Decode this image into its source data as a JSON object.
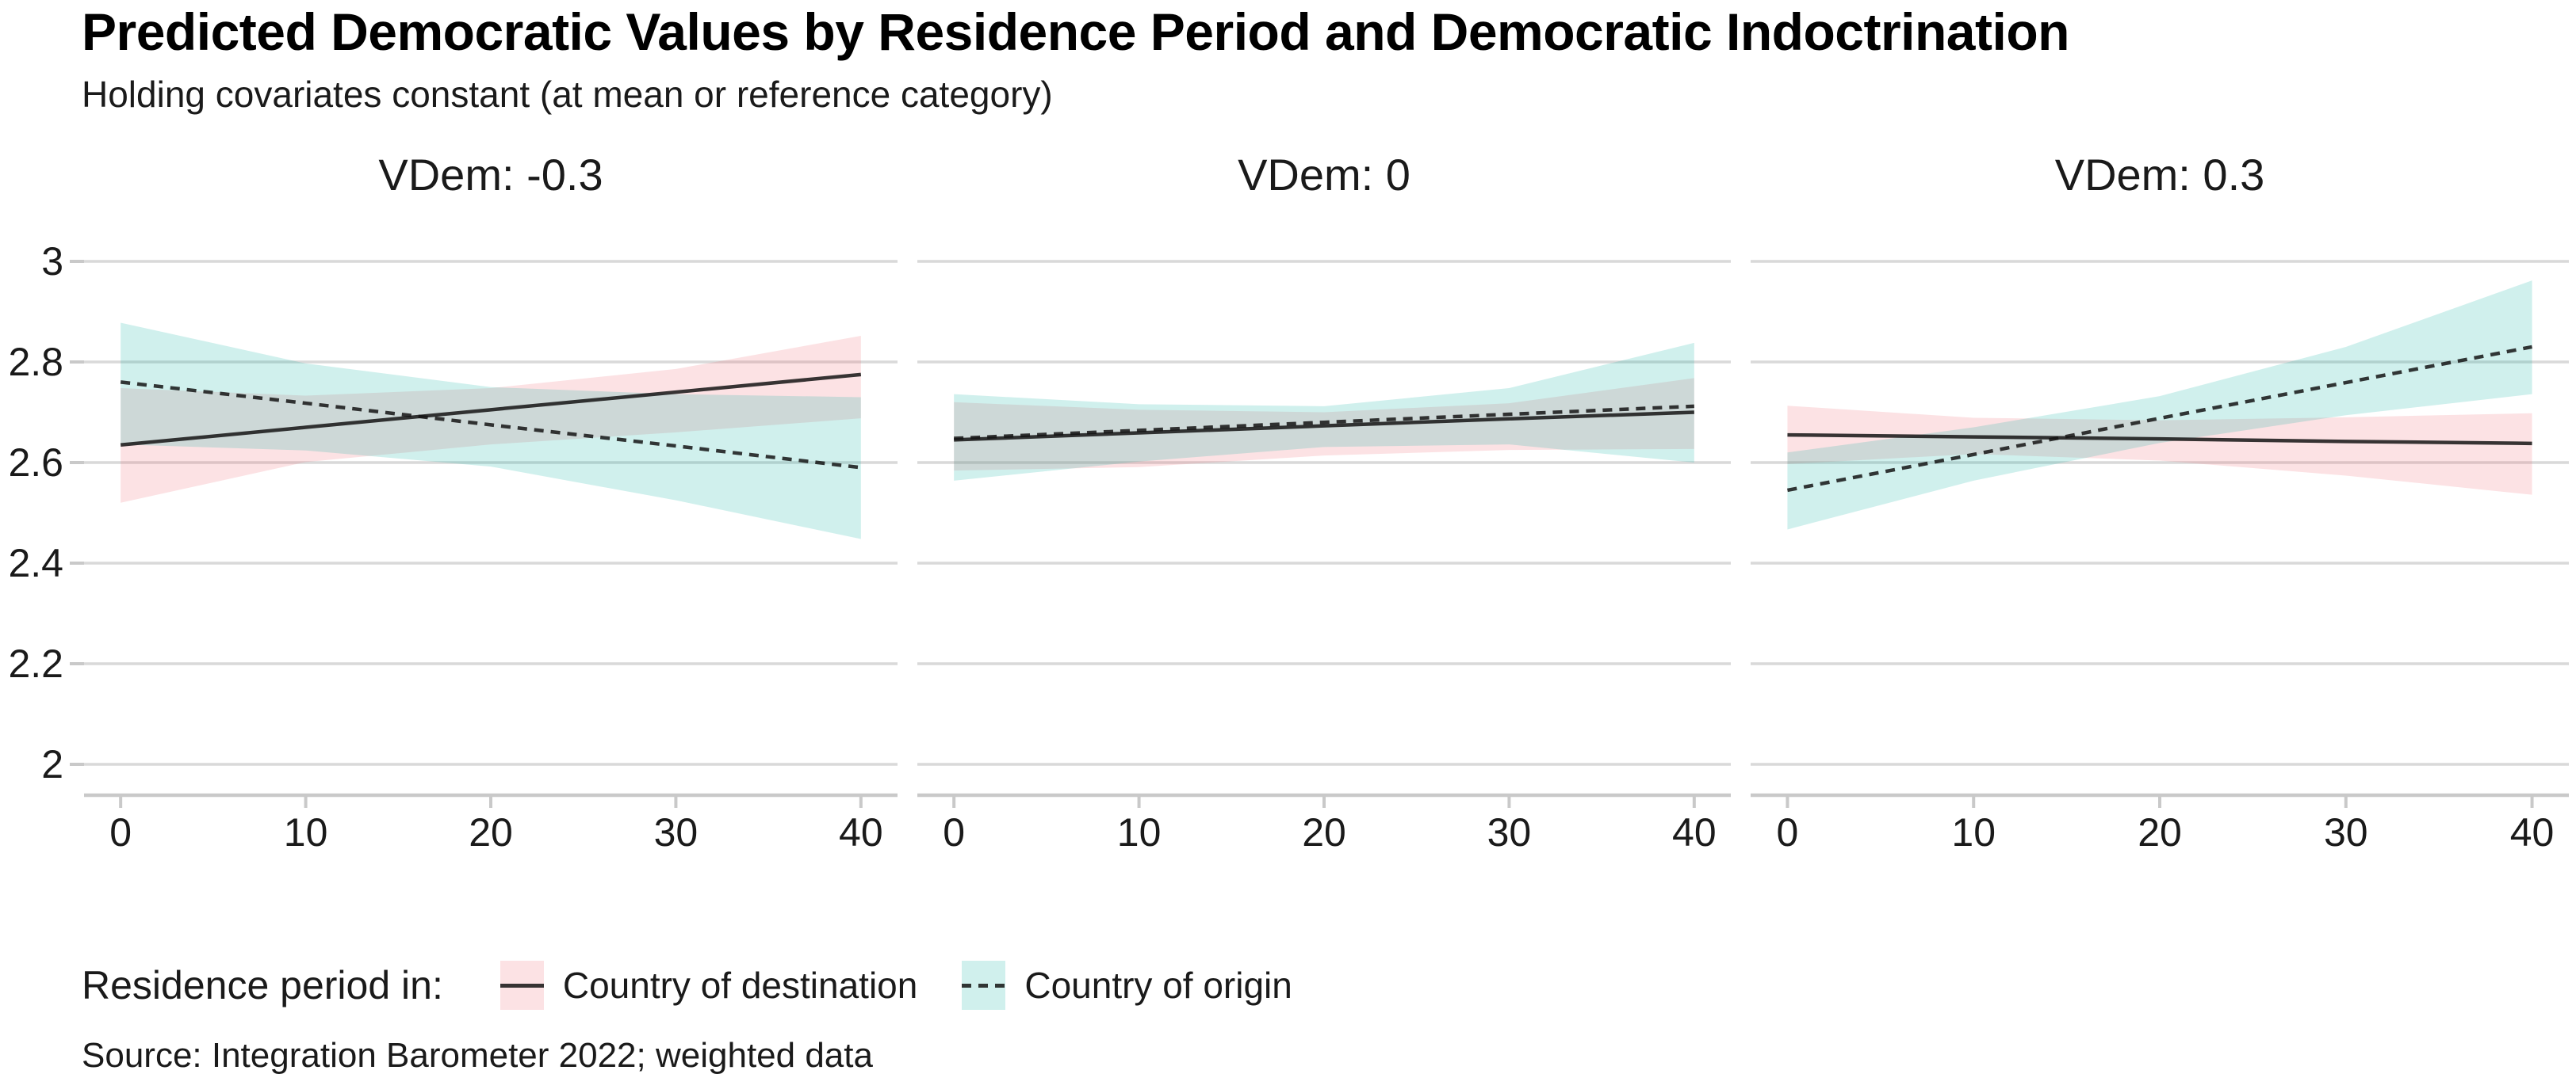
{
  "header": {
    "title": "Predicted Democratic Values by Residence Period and Democratic Indoctrination",
    "subtitle": "Holding covariates constant (at mean or reference category)"
  },
  "caption": "Source: Integration Barometer 2022; weighted data",
  "legend": {
    "title": "Residence period in:",
    "items": [
      {
        "label": "Country of destination",
        "line_style": "solid",
        "swatch_color": "#fce2e4"
      },
      {
        "label": "Country of origin",
        "line_style": "dashed",
        "swatch_color": "#d0f0ed"
      }
    ]
  },
  "colors": {
    "ribbon_destination": "rgba(239,94,105,0.18)",
    "ribbon_origin": "rgba(20,178,163,0.20)",
    "line": "rgba(20,20,20,0.85)",
    "gridline": "#d9d9d9",
    "axis": "#c9c9c9",
    "text": "#1a1a1a"
  },
  "chart_data": {
    "type": "line",
    "title": "Predicted Democratic Values by Residence Period and Democratic Indoctrination",
    "subtitle": "Holding covariates constant (at mean or reference category)",
    "caption": "Source: Integration Barometer 2022; weighted data",
    "xlabel": "",
    "ylabel": "",
    "x": [
      0,
      10,
      20,
      30,
      40
    ],
    "xlim": [
      0,
      40
    ],
    "ylim": [
      2,
      3
    ],
    "xticks": [
      0,
      10,
      20,
      30,
      40
    ],
    "yticks": [
      2,
      2.2,
      2.4,
      2.6,
      2.8,
      3
    ],
    "grid": "horizontal",
    "legend_position": "bottom",
    "legend_title": "Residence period in:",
    "facets": [
      {
        "label": "VDem: -0.3",
        "series": [
          {
            "name": "Country of destination",
            "style": "solid",
            "ribbon": "destination",
            "line": [
              2.635,
              2.67,
              2.705,
              2.74,
              2.775
            ],
            "ci_low": [
              2.52,
              2.601,
              2.636,
              2.66,
              2.688
            ],
            "ci_high": [
              2.748,
              2.733,
              2.748,
              2.786,
              2.852
            ]
          },
          {
            "name": "Country of origin",
            "style": "dashed",
            "ribbon": "origin",
            "line": [
              2.76,
              2.718,
              2.675,
              2.633,
              2.59
            ],
            "ci_low": [
              2.636,
              2.624,
              2.592,
              2.525,
              2.448
            ],
            "ci_high": [
              2.878,
              2.797,
              2.75,
              2.736,
              2.73
            ]
          }
        ]
      },
      {
        "label": "VDem: 0",
        "series": [
          {
            "name": "Country of destination",
            "style": "solid",
            "ribbon": "destination",
            "line": [
              2.645,
              2.659,
              2.673,
              2.687,
              2.7
            ],
            "ci_low": [
              2.584,
              2.591,
              2.614,
              2.625,
              2.627
            ],
            "ci_high": [
              2.72,
              2.705,
              2.7,
              2.718,
              2.768
            ]
          },
          {
            "name": "Country of origin",
            "style": "dashed",
            "ribbon": "origin",
            "line": [
              2.648,
              2.664,
              2.68,
              2.696,
              2.712
            ],
            "ci_low": [
              2.564,
              2.602,
              2.631,
              2.636,
              2.6
            ],
            "ci_high": [
              2.736,
              2.716,
              2.712,
              2.748,
              2.838
            ]
          }
        ]
      },
      {
        "label": "VDem: 0.3",
        "series": [
          {
            "name": "Country of destination",
            "style": "solid",
            "ribbon": "destination",
            "line": [
              2.655,
              2.651,
              2.647,
              2.642,
              2.638
            ],
            "ci_low": [
              2.597,
              2.617,
              2.604,
              2.574,
              2.536
            ],
            "ci_high": [
              2.713,
              2.689,
              2.684,
              2.69,
              2.698
            ]
          },
          {
            "name": "Country of origin",
            "style": "dashed",
            "ribbon": "origin",
            "line": [
              2.545,
              2.616,
              2.688,
              2.759,
              2.83
            ],
            "ci_low": [
              2.467,
              2.564,
              2.639,
              2.694,
              2.736
            ],
            "ci_high": [
              2.62,
              2.67,
              2.732,
              2.83,
              2.962
            ]
          }
        ]
      }
    ]
  }
}
